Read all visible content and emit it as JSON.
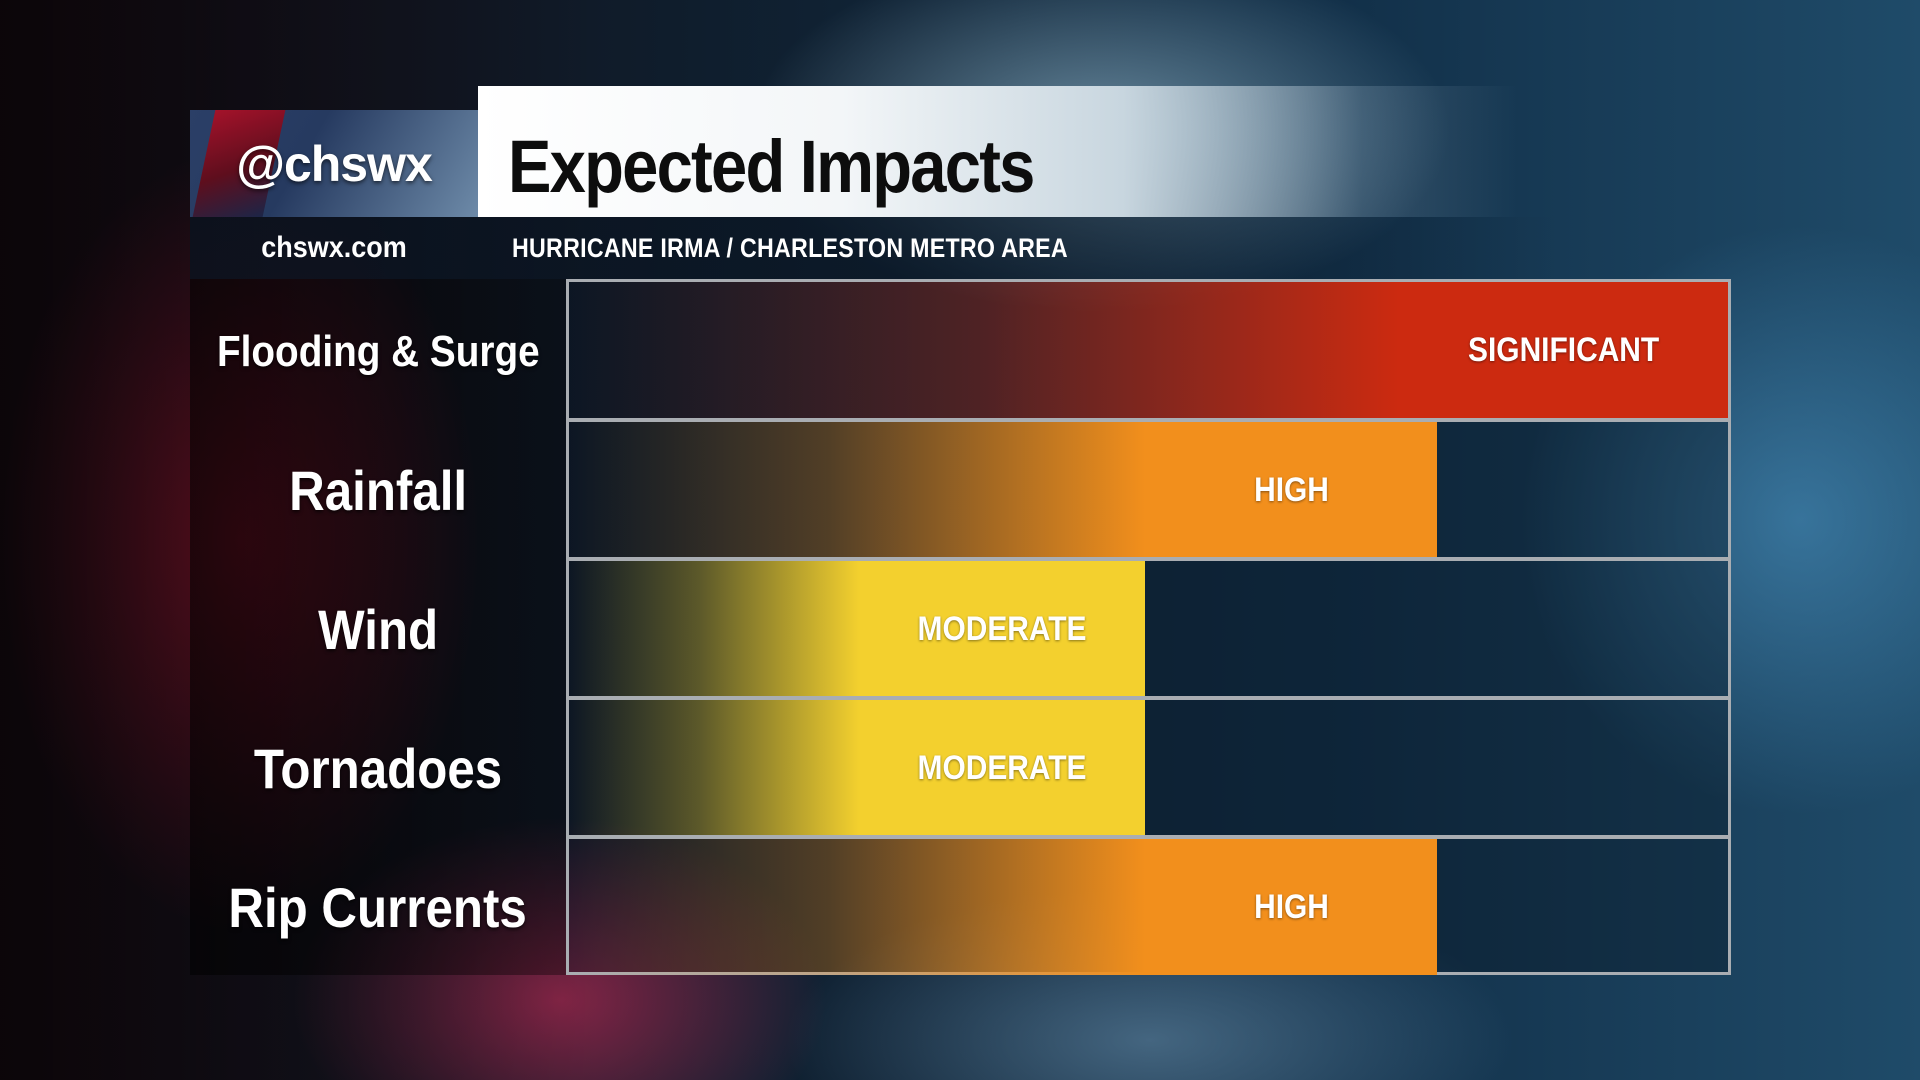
{
  "header": {
    "handle": "@chswx",
    "title": "Expected Impacts",
    "site": "chswx.com",
    "subtitle": "HURRICANE IRMA / CHARLESTON METRO AREA"
  },
  "impacts": [
    {
      "label": "Flooding & Surge",
      "level": "SIGNIFICANT",
      "color": "#cc2a10"
    },
    {
      "label": "Rainfall",
      "level": "HIGH",
      "color": "#f28f1c"
    },
    {
      "label": "Wind",
      "level": "MODERATE",
      "color": "#f3d02e"
    },
    {
      "label": "Tornadoes",
      "level": "MODERATE",
      "color": "#f3d02e"
    },
    {
      "label": "Rip Currents",
      "level": "HIGH",
      "color": "#f28f1c"
    }
  ]
}
